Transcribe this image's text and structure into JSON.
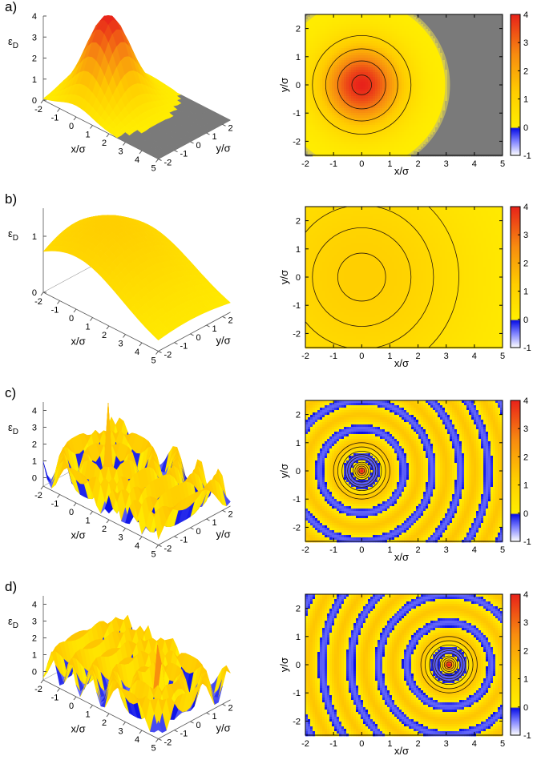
{
  "figure": {
    "xlabel": "x/σ",
    "ylabel_map": "y/σ",
    "ylabel_surface": "y/σ",
    "zlabel": "ε",
    "zlabel_sub": "D",
    "map_x_ticks": [
      "-2",
      "-1",
      "0",
      "1",
      "2",
      "3",
      "4",
      "5"
    ],
    "map_y_ticks": [
      "2",
      "1",
      "0",
      "-1",
      "-2"
    ],
    "surf_x_ticks": [
      "-2",
      "-1",
      "0",
      "1",
      "2",
      "3",
      "4",
      "5"
    ],
    "surf_y_ticks": [
      "-2",
      "-1",
      "0",
      "1",
      "2"
    ],
    "colorbar_ticks": [
      "4",
      "3",
      "2",
      "1",
      "0",
      "-1"
    ],
    "colors": {
      "low": "#0a10e6",
      "zero": "#ffee00",
      "high": "#e8221a",
      "masked": "#7a7a7a",
      "contour": "#2b1a0a"
    }
  },
  "chart_data": [
    {
      "panel": "a)",
      "type": "heatmap",
      "quantity": "ε_D",
      "source_x": 0,
      "source_y": 0,
      "peak": 4.0,
      "waves": false,
      "masked_beyond_r": 3.05,
      "xlim": [
        -2,
        5
      ],
      "ylim": [
        -2.5,
        2.5
      ],
      "zlim": [
        -1,
        4
      ],
      "surface_z_ticks": [
        "0",
        "1",
        "2",
        "3",
        "4"
      ],
      "surface_zlim": [
        0,
        4
      ]
    },
    {
      "panel": "b)",
      "type": "heatmap",
      "quantity": "ε_D",
      "source_x": 0,
      "source_y": 0,
      "peak": 1.2,
      "waves": false,
      "masked_beyond_r": null,
      "xlim": [
        -2,
        5
      ],
      "ylim": [
        -2.5,
        2.5
      ],
      "zlim": [
        -1,
        4
      ],
      "surface_z_ticks": [
        "0",
        "1"
      ],
      "surface_zlim": [
        0,
        1.5
      ]
    },
    {
      "panel": "c)",
      "type": "heatmap",
      "quantity": "ε_D",
      "source_x": 0,
      "source_y": 0,
      "peak": 3.0,
      "waves": true,
      "wavelength": 1.0,
      "masked_beyond_r": null,
      "xlim": [
        -2,
        5
      ],
      "ylim": [
        -2.5,
        2.5
      ],
      "zlim": [
        -1,
        4
      ],
      "surface_z_ticks": [
        "0",
        "1",
        "2",
        "3",
        "4"
      ],
      "surface_zlim": [
        -0.5,
        4.5
      ]
    },
    {
      "panel": "d)",
      "type": "heatmap",
      "quantity": "ε_D",
      "source_x": 3.1,
      "source_y": 0,
      "peak": 3.0,
      "waves": true,
      "wavelength": 1.0,
      "masked_beyond_r": null,
      "xlim": [
        -2,
        5
      ],
      "ylim": [
        -2.5,
        2.5
      ],
      "zlim": [
        -1,
        4
      ],
      "surface_z_ticks": [
        "0",
        "1",
        "2",
        "3",
        "4"
      ],
      "surface_zlim": [
        -0.5,
        4.5
      ]
    }
  ]
}
